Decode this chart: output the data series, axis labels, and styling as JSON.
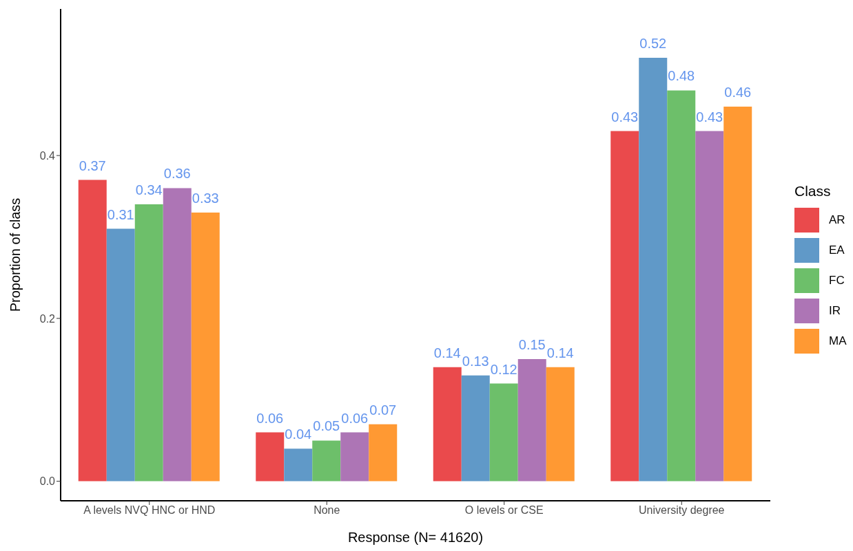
{
  "chart_data": {
    "type": "bar",
    "xlabel": "Response (N= 41620)",
    "ylabel": "Proportion of class",
    "legend_title": "Class",
    "legend": "right",
    "grid": false,
    "data_labels": true,
    "categories": [
      "A levels NVQ HNC or HND",
      "None",
      "O levels or CSE",
      "University degree"
    ],
    "ylim": [
      -0.024,
      0.58
    ],
    "yticks": [
      {
        "value": 0,
        "label": "0.0"
      },
      {
        "value": 0.2,
        "label": "0.2"
      },
      {
        "value": 0.4,
        "label": "0.4"
      }
    ],
    "series": [
      {
        "name": "AR",
        "color": "#ea4a4c",
        "values": [
          0.37,
          0.06,
          0.14,
          0.43
        ]
      },
      {
        "name": "EA",
        "color": "#6099c8",
        "values": [
          0.31,
          0.04,
          0.13,
          0.52
        ]
      },
      {
        "name": "FC",
        "color": "#6dbf6a",
        "values": [
          0.34,
          0.05,
          0.12,
          0.48
        ]
      },
      {
        "name": "IR",
        "color": "#ad75b5",
        "values": [
          0.36,
          0.06,
          0.15,
          0.43
        ]
      },
      {
        "name": "MA",
        "color": "#ff9933",
        "values": [
          0.33,
          0.07,
          0.14,
          0.46
        ]
      }
    ]
  }
}
